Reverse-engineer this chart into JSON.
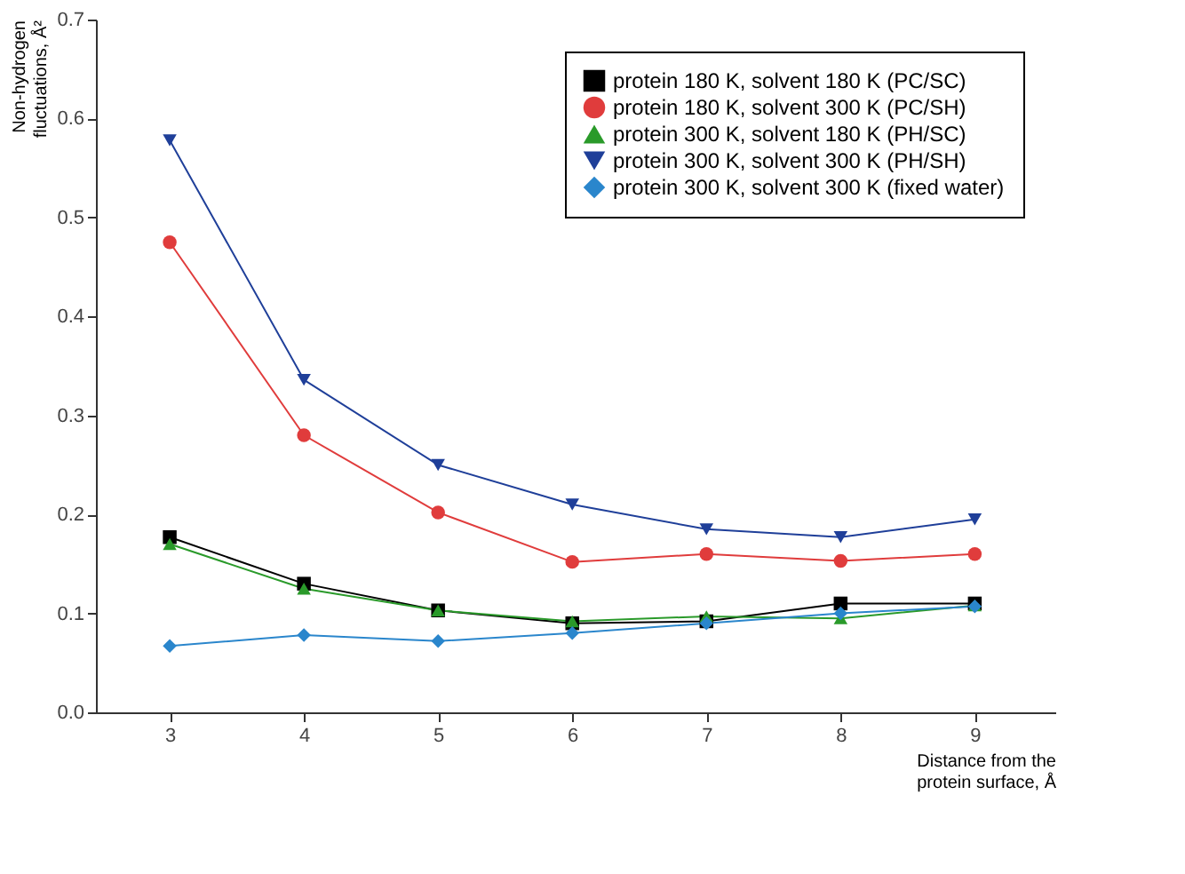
{
  "chart_data": {
    "type": "line",
    "xlabel": "Distance from the\nprotein surface, Å",
    "ylabel": "Non-hydrogen\nfluctuations, Å²",
    "x": [
      3,
      4,
      5,
      6,
      7,
      8,
      9
    ],
    "xlim": [
      2.45,
      9.6
    ],
    "xticks": [
      3,
      4,
      5,
      6,
      7,
      8,
      9
    ],
    "ylim": [
      0,
      0.7
    ],
    "yticks": [
      {
        "value": 0,
        "label": "0.0"
      },
      0.1,
      0.2,
      0.3,
      0.4,
      0.5,
      0.6,
      0.7
    ],
    "legend": "top right",
    "grid": false,
    "line_style": "solid",
    "series": [
      {
        "name": "protein 180 K, solvent 180 K (PC/SC)",
        "color": "#000000",
        "marker": "square",
        "values": [
          0.177,
          0.13,
          0.103,
          0.09,
          0.092,
          0.11,
          0.11
        ]
      },
      {
        "name": "protein 180 K, solvent 300 K (PC/SH)",
        "color": "#e03c3c",
        "marker": "circle",
        "values": [
          0.475,
          0.28,
          0.202,
          0.152,
          0.16,
          0.153,
          0.16
        ]
      },
      {
        "name": "protein 300 K, solvent 180 K (PH/SC)",
        "color": "#2a9a2a",
        "marker": "triangle",
        "values": [
          0.17,
          0.125,
          0.103,
          0.092,
          0.097,
          0.095,
          0.108
        ]
      },
      {
        "name": "protein 300 K, solvent 300 K (PH/SH)",
        "color": "#1f3f99",
        "marker": "triangle-down",
        "values": [
          0.578,
          0.336,
          0.25,
          0.21,
          0.185,
          0.177,
          0.195
        ]
      },
      {
        "name": "protein 300 K, solvent 300 K (fixed water)",
        "color": "#2a86cc",
        "marker": "diamond",
        "values": [
          0.067,
          0.078,
          0.072,
          0.08,
          0.09,
          0.1,
          0.107
        ]
      }
    ]
  }
}
